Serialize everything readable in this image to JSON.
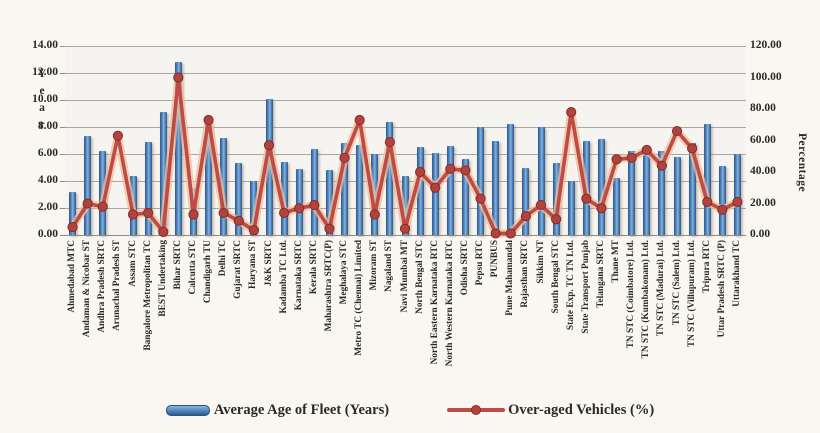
{
  "chart_data": {
    "type": "bar",
    "combo_types": [
      "bar",
      "line"
    ],
    "title": "",
    "categories": [
      "Ahmedabad MTC",
      "Andaman & Nicobar ST",
      "Andhra Pradesh SRTC",
      "Arunachal Pradesh ST",
      "Assam STC",
      "Bangalore Metropolitan TC",
      "BEST Undertaking",
      "Bihar SRTC",
      "Calcutta STC",
      "Chandigarh TU",
      "Delhi TC",
      "Gujarat SRTC",
      "Haryana ST",
      "J&K SRTC",
      "Kadamba TC Ltd.",
      "Karnataka SRTC",
      "Kerala SRTC",
      "Maharashtra SRTC(P)",
      "Meghalaya STC",
      "Metro TC (Chennai) Limited",
      "Mizoram ST",
      "Nagaland ST",
      "Navi Mumbai MT",
      "North Bengal STC",
      "North Eastern Karnataka RTC",
      "North Western Karnataka RTC",
      "Odisha SRTC",
      "Pepsu RTC",
      "PUNBUS",
      "Pune Mahamandal",
      "Rajasthan SRTC",
      "Sikkim NT",
      "South Bengal STC",
      "State Exp. TC TN Ltd.",
      "State Transport Punjab",
      "Telangana SRTC",
      "Thane MT",
      "TN STC (Coimbatore) Ltd.",
      "TN STC (Kumbakonam) Ltd.",
      "TN STC (Madurai) Ltd.",
      "TN STC (Salem) Ltd.",
      "TN STC (Villupuram) Ltd.",
      "Tripura RTC",
      "Uttar Pradesh SRTC (P)",
      "Uttarakhand TC"
    ],
    "series": [
      {
        "name": "Average Age of Fleet (Years)",
        "type": "bar",
        "axis": "left",
        "color": "#4f81bd",
        "values": [
          3.2,
          7.3,
          6.2,
          0,
          4.4,
          6.9,
          9.1,
          12.8,
          3.5,
          8.5,
          7.2,
          5.3,
          4.0,
          10.1,
          5.4,
          4.9,
          6.4,
          4.8,
          6.8,
          6.7,
          6.0,
          8.4,
          4.4,
          6.5,
          6.1,
          6.6,
          5.6,
          8.0,
          7.0,
          8.2,
          5.0,
          8.0,
          5.3,
          4.0,
          7.0,
          7.1,
          4.2,
          6.2,
          6.1,
          6.2,
          5.8,
          6.8,
          8.2,
          5.1,
          6.0
        ]
      },
      {
        "name": "Over-aged Vehicles (%)",
        "type": "line",
        "axis": "right",
        "color": "#be4b48",
        "marker_color": "#b2423e",
        "glow_color": "#eec09a",
        "values": [
          5,
          20,
          18,
          63,
          13,
          14,
          2,
          100,
          13,
          73,
          14,
          9,
          3,
          57,
          14,
          17,
          19,
          4,
          49,
          73,
          13,
          59,
          4,
          40,
          30,
          42,
          41,
          23,
          1,
          1,
          12,
          19,
          10,
          78,
          23,
          17,
          48,
          49,
          54,
          44,
          66,
          55,
          21,
          16,
          21
        ]
      }
    ],
    "left_axis": {
      "label": "Year",
      "min": 0,
      "max": 14,
      "step": 2,
      "tick_labels": [
        "0.00",
        "2.00",
        "4.00",
        "6.00",
        "8.00",
        "10.00",
        "12.00",
        "14.00"
      ]
    },
    "right_axis": {
      "label": "Percentage",
      "min": 0,
      "max": 120,
      "step": 20,
      "tick_labels": [
        "0.00",
        "20.00",
        "40.00",
        "60.00",
        "80.00",
        "100.00",
        "120.00"
      ]
    },
    "grid": true,
    "legend_position": "bottom"
  }
}
